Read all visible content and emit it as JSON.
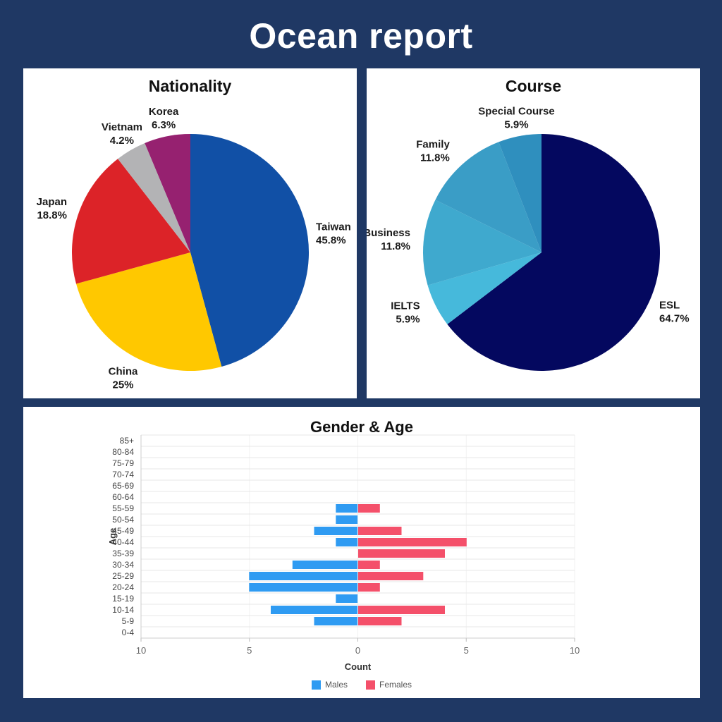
{
  "page": {
    "title": "Ocean report",
    "background": "#1F3864",
    "card_background": "#FFFFFF"
  },
  "chart_data": [
    {
      "type": "pie",
      "title": "Nationality",
      "start_angle_deg": 0,
      "direction": "clockwise",
      "slices": [
        {
          "label": "Taiwan",
          "value": 45.8,
          "pct": "45.8%",
          "color": "#1150A6"
        },
        {
          "label": "China",
          "value": 25,
          "pct": "25%",
          "color": "#FFC800"
        },
        {
          "label": "Japan",
          "value": 18.8,
          "pct": "18.8%",
          "color": "#DC2328"
        },
        {
          "label": "Vietnam",
          "value": 4.2,
          "pct": "4.2%",
          "color": "#B3B3B5"
        },
        {
          "label": "Korea",
          "value": 6.3,
          "pct": "6.3%",
          "color": "#962170"
        }
      ]
    },
    {
      "type": "pie",
      "title": "Course",
      "start_angle_deg": 0,
      "direction": "clockwise",
      "slices": [
        {
          "label": "ESL",
          "value": 64.7,
          "pct": "64.7%",
          "color": "#04085F"
        },
        {
          "label": "IELTS",
          "value": 5.9,
          "pct": "5.9%",
          "color": "#46B9DB"
        },
        {
          "label": "Business",
          "value": 11.8,
          "pct": "11.8%",
          "color": "#3FA9CE"
        },
        {
          "label": "Family",
          "value": 11.8,
          "pct": "11.8%",
          "color": "#3A9DC6"
        },
        {
          "label": "Special Course",
          "value": 5.9,
          "pct": "5.9%",
          "color": "#2F8FBE"
        }
      ]
    },
    {
      "type": "bar",
      "subtype": "population-pyramid",
      "title": "Gender & Age",
      "xlabel": "Count",
      "ylabel": "Age",
      "categories": [
        "85+",
        "80-84",
        "75-79",
        "70-74",
        "65-69",
        "60-64",
        "55-59",
        "50-54",
        "45-49",
        "40-44",
        "35-39",
        "30-34",
        "25-29",
        "20-24",
        "15-19",
        "10-14",
        "5-9",
        "0-4"
      ],
      "series": [
        {
          "name": "Males",
          "side": "left",
          "color": "#2F9BF2",
          "values": [
            0,
            0,
            0,
            0,
            0,
            0,
            1,
            1,
            2,
            1,
            0,
            3,
            5,
            5,
            1,
            4,
            2,
            0
          ]
        },
        {
          "name": "Females",
          "side": "right",
          "color": "#F4506A",
          "values": [
            0,
            0,
            0,
            0,
            0,
            0,
            1,
            0,
            2,
            5,
            4,
            1,
            3,
            1,
            0,
            4,
            2,
            0
          ]
        }
      ],
      "x_ticks": [
        "10",
        "5",
        "0",
        "5",
        "10"
      ],
      "x_tick_values": [
        -10,
        -5,
        0,
        5,
        10
      ],
      "x_max": 10,
      "grid": true,
      "legend_position": "bottom"
    }
  ]
}
